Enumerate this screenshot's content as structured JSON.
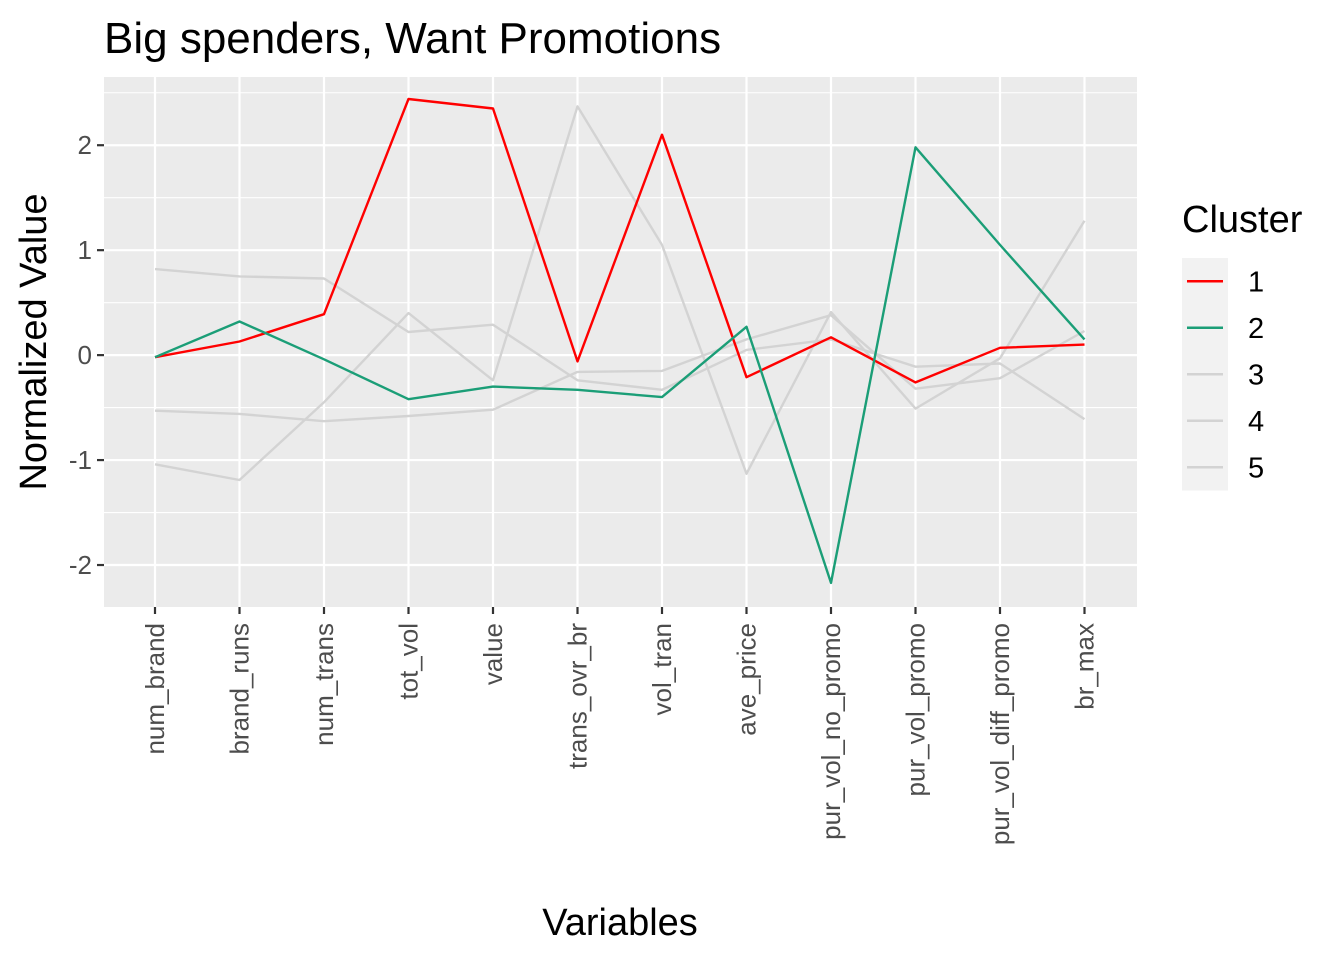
{
  "chart_data": {
    "type": "line",
    "title": "Big spenders, Want Promotions",
    "xlabel": "Variables",
    "ylabel": "Normalized Value",
    "ylim": [
      -2.4,
      2.65
    ],
    "yticks": [
      -2,
      -1,
      0,
      1,
      2
    ],
    "grid": true,
    "legend_position": "right",
    "legend_title": "Cluster",
    "categories": [
      "num_brand",
      "brand_runs",
      "num_trans",
      "tot_vol",
      "value",
      "trans_ovr_br",
      "vol_tran",
      "ave_price",
      "pur_vol_no_promo",
      "pur_vol_promo",
      "pur_vol_diff_promo",
      "br_max"
    ],
    "series": [
      {
        "name": "1",
        "color": "#FF0000",
        "values": [
          -0.02,
          0.13,
          0.39,
          2.44,
          2.35,
          -0.06,
          2.1,
          -0.21,
          0.17,
          -0.26,
          0.07,
          0.1
        ]
      },
      {
        "name": "2",
        "color": "#1B9E77",
        "values": [
          -0.02,
          0.32,
          -0.04,
          -0.42,
          -0.3,
          -0.33,
          -0.4,
          0.27,
          -2.17,
          1.98,
          1.05,
          0.15
        ]
      },
      {
        "name": "3",
        "color": "#D3D3D3",
        "values": [
          0.82,
          0.75,
          0.73,
          0.22,
          0.29,
          -0.24,
          -0.33,
          0.05,
          0.15,
          -0.11,
          -0.08,
          -0.61
        ]
      },
      {
        "name": "4",
        "color": "#D3D3D3",
        "values": [
          -0.53,
          -0.56,
          -0.63,
          -0.58,
          -0.52,
          -0.16,
          -0.15,
          0.15,
          0.38,
          -0.32,
          -0.22,
          0.23
        ]
      },
      {
        "name": "5",
        "color": "#D3D3D3",
        "values": [
          -1.04,
          -1.19,
          -0.45,
          0.4,
          -0.24,
          2.37,
          1.05,
          -1.13,
          0.41,
          -0.51,
          -0.03,
          1.28
        ]
      }
    ]
  }
}
